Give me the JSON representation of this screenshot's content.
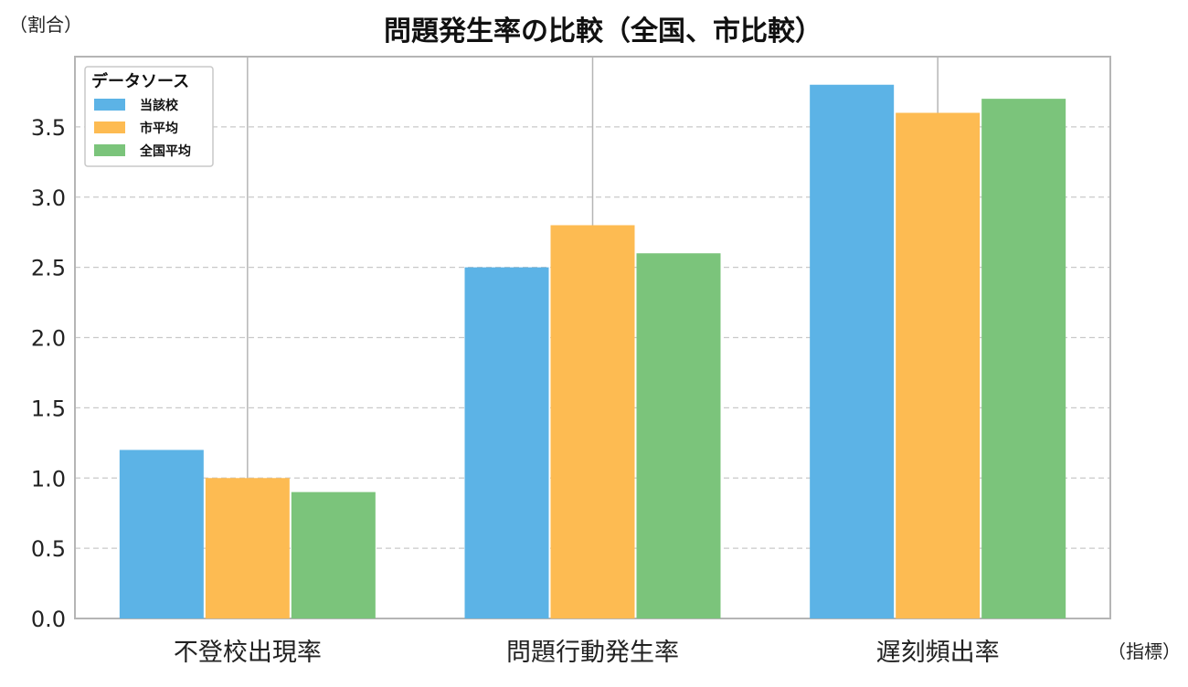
{
  "chart_data": {
    "type": "bar",
    "title": "問題発生率の比較（全国、市比較）",
    "ylabel": "（割合）",
    "xlabel": "（指標）",
    "categories": [
      "不登校出現率",
      "問題行動発生率",
      "遅刻頻出率"
    ],
    "series": [
      {
        "name": "当該校",
        "values": [
          1.2,
          2.5,
          3.8
        ],
        "color": "#5cb3e6"
      },
      {
        "name": "市平均",
        "values": [
          1.0,
          2.8,
          3.6
        ],
        "color": "#fdbb52"
      },
      {
        "name": "全国平均",
        "values": [
          0.9,
          2.6,
          3.7
        ],
        "color": "#7bc47b"
      }
    ],
    "ylim": [
      0,
      4.0
    ],
    "yticks": [
      "0.0",
      "0.5",
      "1.0",
      "1.5",
      "2.0",
      "2.5",
      "3.0",
      "3.5"
    ],
    "ytick_values": [
      0,
      0.5,
      1.0,
      1.5,
      2.0,
      2.5,
      3.0,
      3.5
    ],
    "grid": true,
    "legend": {
      "title": "データソース",
      "placement": "top-left"
    }
  }
}
